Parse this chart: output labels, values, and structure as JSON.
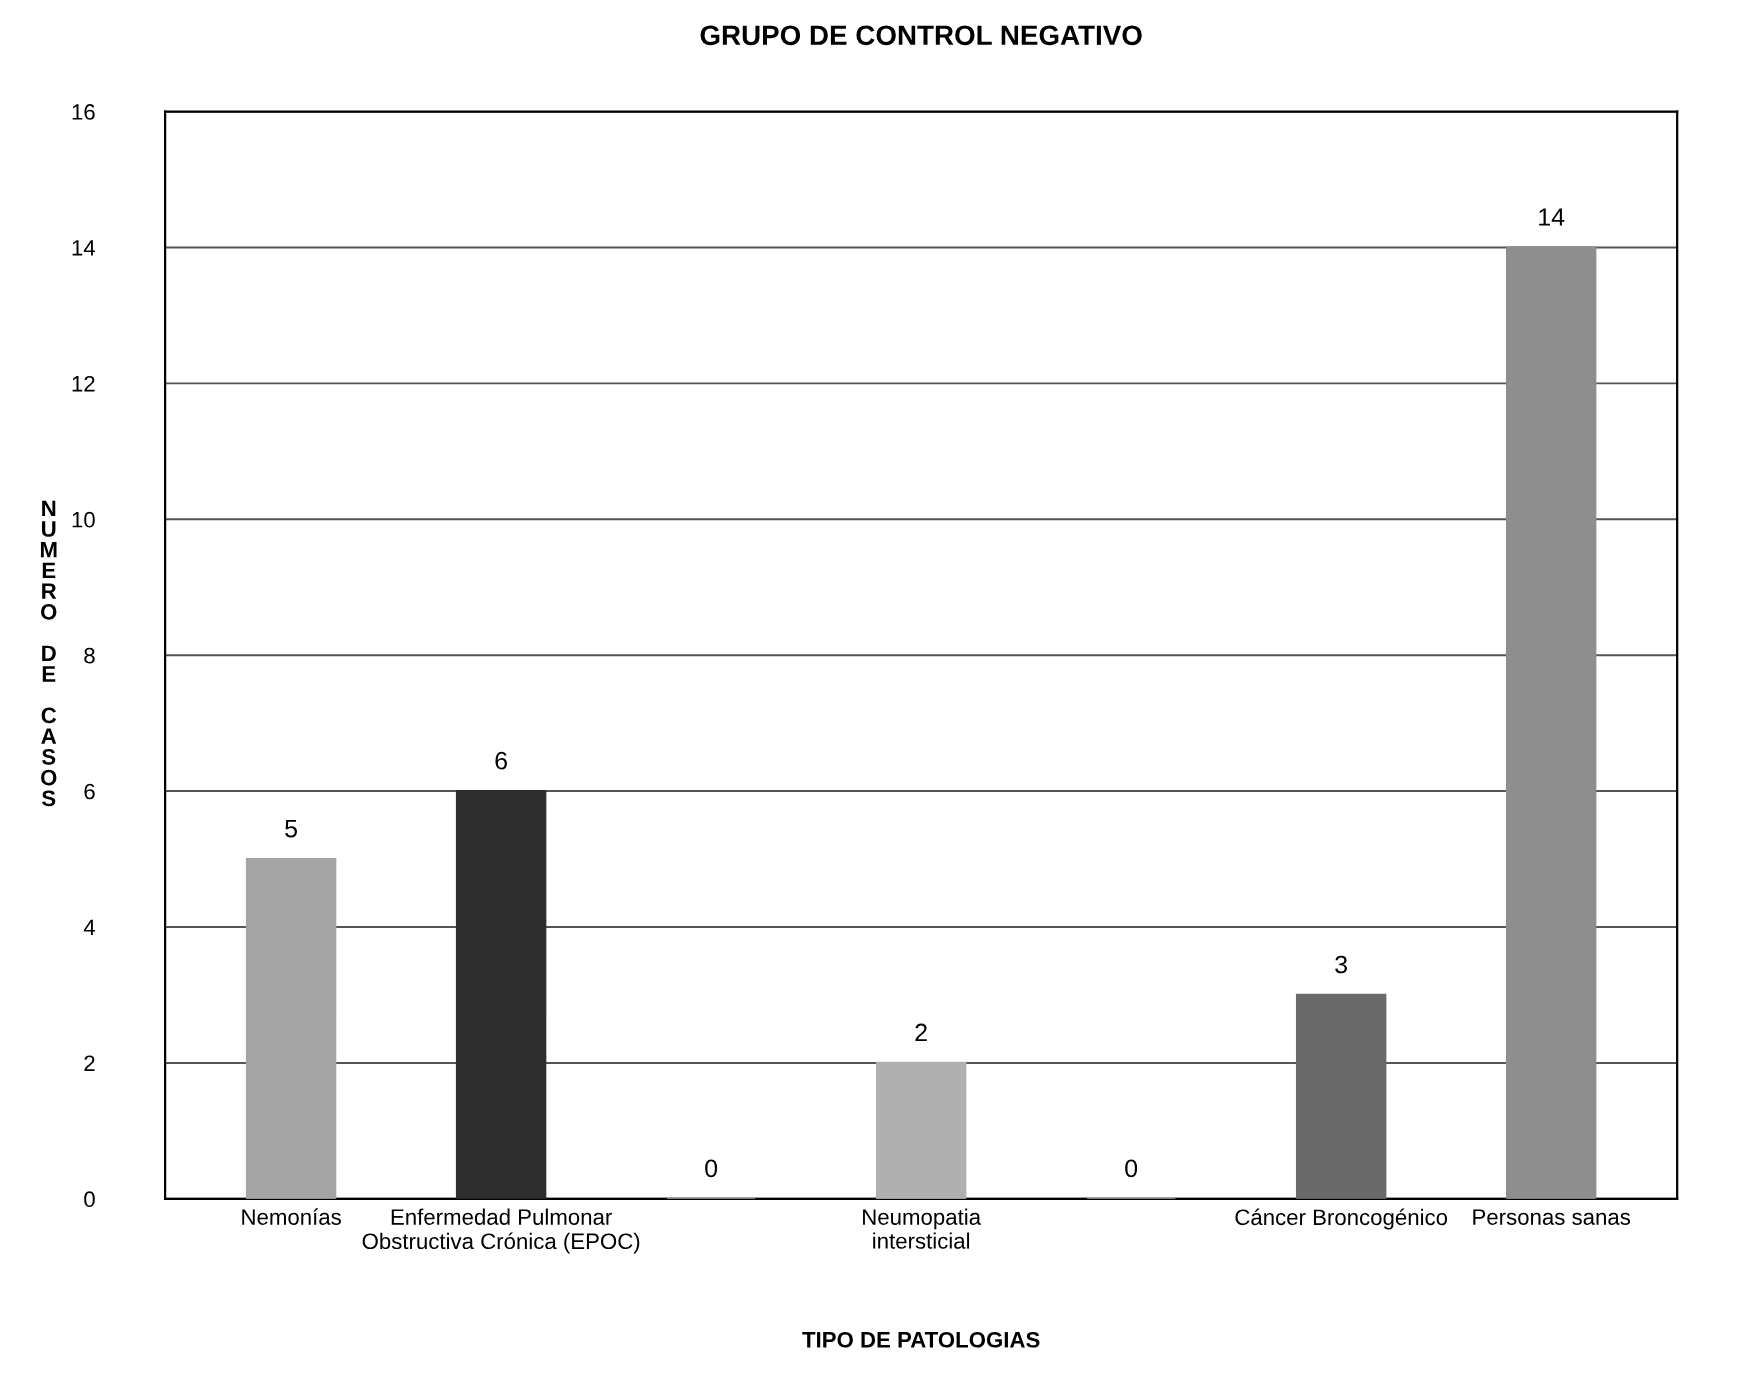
{
  "chart_data": {
    "type": "bar",
    "title": "GRUPO DE CONTROL NEGATIVO",
    "xlabel": "TIPO DE PATOLOGIAS",
    "ylabel": "NUMERO DE CASOS",
    "categories": [
      "Nemonías",
      "Enfermedad Pulmonar\nObstructiva Crónica (EPOC)",
      null,
      "Neumopatia\nintersticial",
      null,
      "Cáncer Broncogénico",
      "Personas sanas"
    ],
    "values": [
      5,
      6,
      0,
      2,
      0,
      3,
      14
    ],
    "colors": [
      "#a4a4a4",
      "#2e2e2e",
      "#a4a4a4",
      "#b0b0b0",
      "#a4a4a4",
      "#6a6a6a",
      "#8e8e8e"
    ],
    "ylim": [
      0,
      16
    ],
    "yticks": [
      0,
      2,
      4,
      6,
      8,
      10,
      12,
      14,
      16
    ],
    "grid": "y",
    "data_labels": true,
    "legend": false
  }
}
